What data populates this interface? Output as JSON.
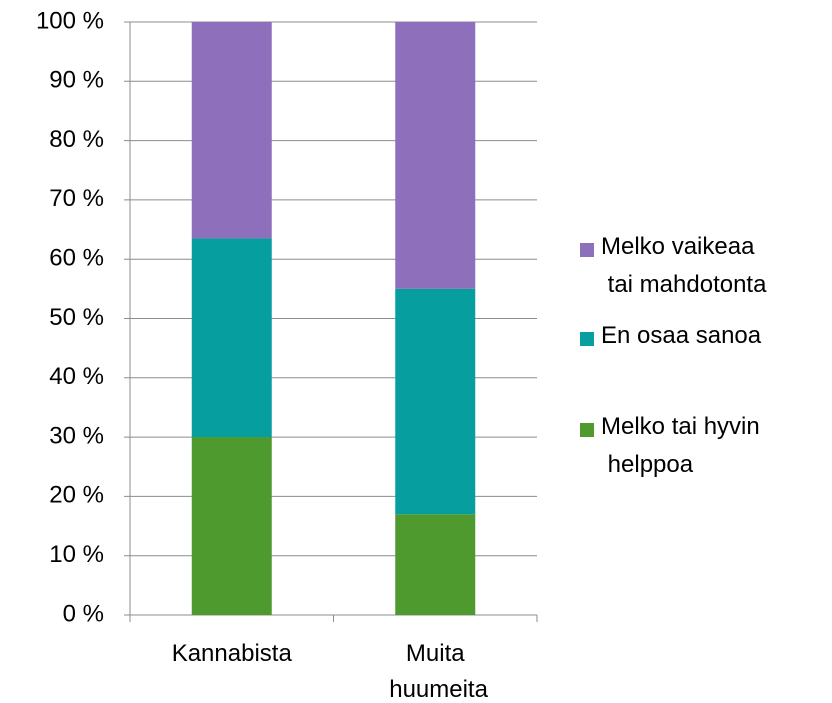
{
  "chart_data": {
    "type": "stacked_bar",
    "categories": [
      "Kannabista",
      "Muita huumeita"
    ],
    "series": [
      {
        "name": "Melko tai hyvin helppoa",
        "color": "#4f9a2e",
        "values": [
          30,
          17
        ]
      },
      {
        "name": "En osaa sanoa",
        "color": "#069e9e",
        "values": [
          33.5,
          38
        ]
      },
      {
        "name": "Melko vaikeaa tai mahdotonta",
        "color": "#8e6fbb",
        "values": [
          36.5,
          45
        ]
      }
    ],
    "ylim": [
      0,
      100
    ],
    "yticks": [
      {
        "value": 0,
        "label": "0 %"
      },
      {
        "value": 10,
        "label": "10 %"
      },
      {
        "value": 20,
        "label": "20 %"
      },
      {
        "value": 30,
        "label": "30 %"
      },
      {
        "value": 40,
        "label": "40 %"
      },
      {
        "value": 50,
        "label": "50 %"
      },
      {
        "value": 60,
        "label": "60 %"
      },
      {
        "value": 70,
        "label": "70 %"
      },
      {
        "value": 80,
        "label": "80 %"
      },
      {
        "value": 90,
        "label": "90 %"
      },
      {
        "value": 100,
        "label": "100 %"
      }
    ],
    "grid": true,
    "legend": "right"
  }
}
